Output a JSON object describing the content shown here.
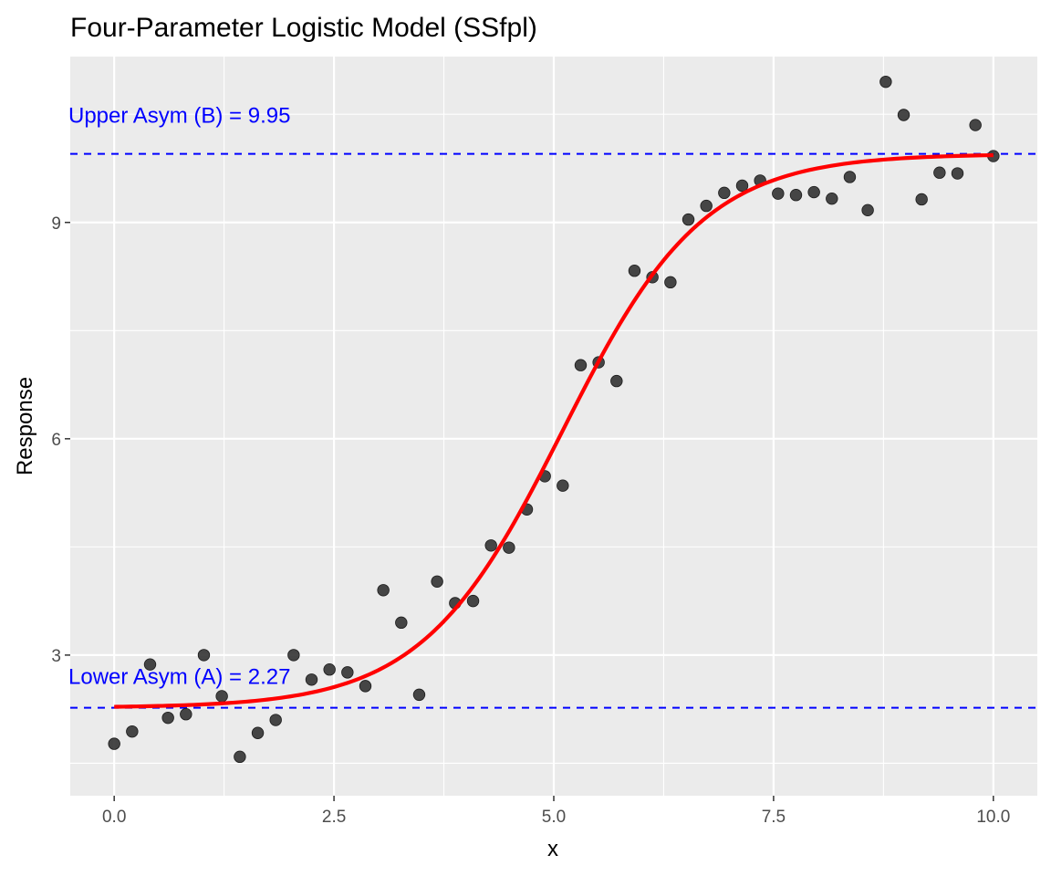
{
  "chart_data": {
    "type": "scatter",
    "title": "Four-Parameter Logistic Model (SSfpl)",
    "xlabel": "x",
    "ylabel": "Response",
    "xlim": [
      -0.5,
      10.5
    ],
    "ylim": [
      1.05,
      11.3
    ],
    "x_ticks": [
      0,
      2.5,
      5,
      7.5,
      10
    ],
    "x_tick_labels": [
      "0.0",
      "2.5",
      "5.0",
      "7.5",
      "10.0"
    ],
    "y_ticks": [
      3,
      6,
      9
    ],
    "y_tick_labels": [
      "3",
      "6",
      "9"
    ],
    "grid": true,
    "background": "#ebebeb",
    "points": {
      "color": "#333333",
      "x": [
        0.0,
        0.204,
        0.408,
        0.612,
        0.816,
        1.02,
        1.224,
        1.429,
        1.633,
        1.837,
        2.041,
        2.245,
        2.449,
        2.653,
        2.857,
        3.061,
        3.265,
        3.469,
        3.673,
        3.878,
        4.082,
        4.286,
        4.49,
        4.694,
        4.898,
        5.102,
        5.306,
        5.51,
        5.714,
        5.918,
        6.122,
        6.327,
        6.531,
        6.735,
        6.939,
        7.143,
        7.347,
        7.551,
        7.755,
        7.959,
        8.163,
        8.367,
        8.571,
        8.776,
        8.98,
        9.184,
        9.388,
        9.592,
        9.796,
        10.0
      ],
      "y": [
        1.77,
        1.94,
        2.87,
        2.13,
        2.18,
        3.0,
        2.43,
        1.59,
        1.92,
        2.1,
        3.0,
        2.66,
        2.8,
        2.76,
        2.57,
        3.9,
        3.45,
        2.45,
        4.02,
        3.72,
        3.75,
        4.52,
        4.49,
        5.02,
        5.48,
        5.35,
        7.02,
        7.06,
        6.8,
        8.33,
        8.24,
        8.17,
        9.04,
        9.23,
        9.41,
        9.51,
        9.58,
        9.4,
        9.38,
        9.42,
        9.33,
        9.63,
        9.17,
        10.95,
        10.49,
        9.32,
        9.69,
        9.68,
        10.35,
        9.92
      ]
    },
    "fit": {
      "color": "#ff0000",
      "model": "SSfpl",
      "A": 2.27,
      "B": 9.95,
      "xmid": 5.1,
      "scal": 0.8
    },
    "reference_lines": [
      {
        "y": 9.95,
        "color": "#0000ff",
        "label": "Upper Asym (B) = 9.95"
      },
      {
        "y": 2.27,
        "color": "#0000ff",
        "label": "Lower Asym (A) = 2.27"
      }
    ]
  }
}
